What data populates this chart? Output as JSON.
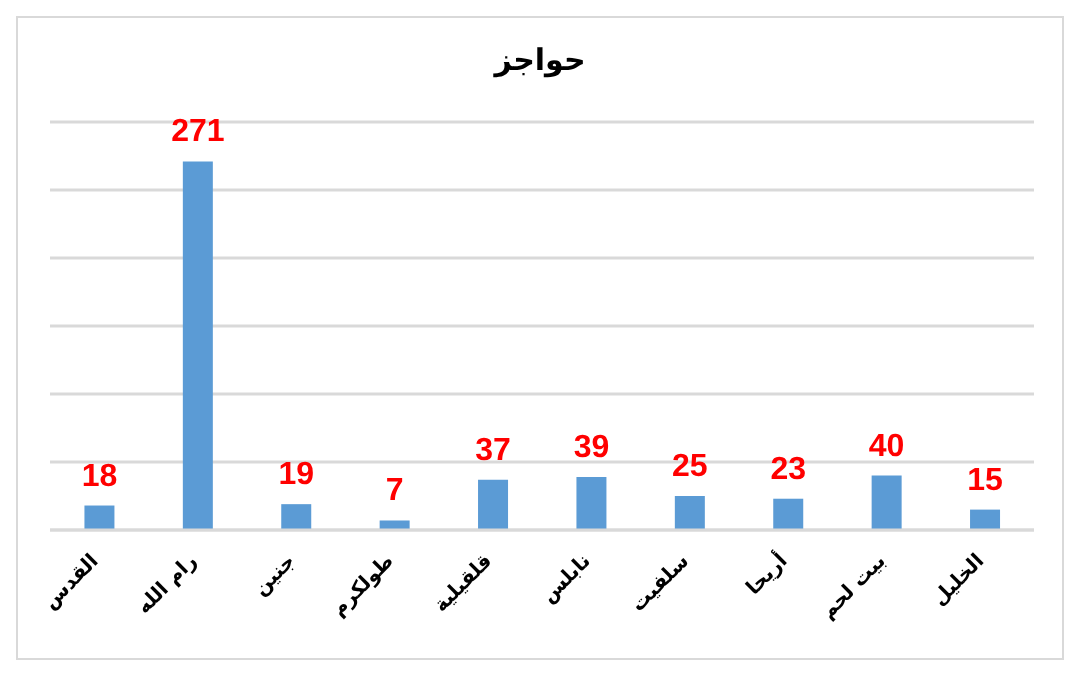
{
  "chart_data": {
    "type": "bar",
    "title": "حواجز",
    "categories": [
      "القدس",
      "رام الله",
      "جنين",
      "طولكرم",
      "قلقيلية",
      "نابلس",
      "سلفيت",
      "أريحا",
      "بيت لحم",
      "الخليل"
    ],
    "values": [
      18,
      271,
      19,
      7,
      37,
      39,
      25,
      23,
      40,
      15
    ],
    "color": "#5b9bd5",
    "ylim": [
      0,
      300
    ],
    "yticks": [
      {
        "value": 0,
        "label": null
      },
      {
        "value": 50,
        "label": null
      },
      {
        "value": 100,
        "label": null
      },
      {
        "value": 150,
        "label": null
      },
      {
        "value": 200,
        "label": null
      },
      {
        "value": 250,
        "label": null
      },
      {
        "value": 300,
        "label": null
      }
    ],
    "grid": "y",
    "tick_labels": "x",
    "data_labels": true
  }
}
